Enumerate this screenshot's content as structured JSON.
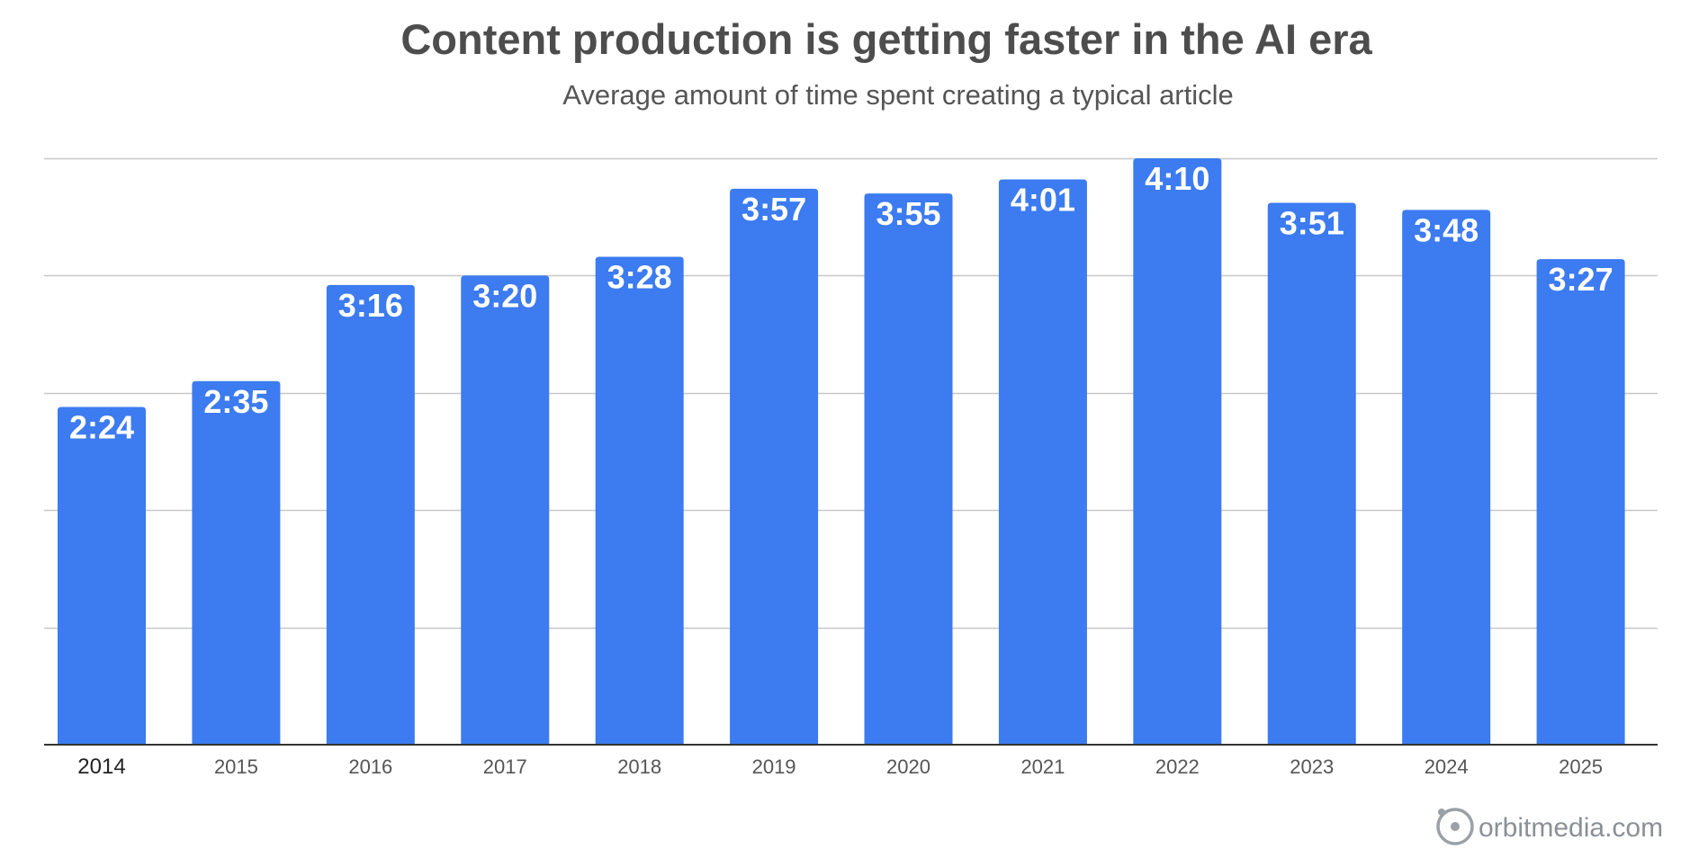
{
  "chart_data": {
    "type": "bar",
    "title": "Content production is getting faster in the AI era",
    "subtitle": "Average amount of time spent creating a typical article",
    "xlabel": "",
    "ylabel": "",
    "categories": [
      "2014",
      "2015",
      "2016",
      "2017",
      "2018",
      "2019",
      "2020",
      "2021",
      "2022",
      "2023",
      "2024",
      "2025"
    ],
    "values_minutes": [
      144,
      155,
      196,
      200,
      208,
      237,
      235,
      241,
      250,
      231,
      228,
      207
    ],
    "value_labels": [
      "2:24",
      "2:35",
      "3:16",
      "3:20",
      "3:28",
      "3:57",
      "3:55",
      "4:01",
      "4:10",
      "3:51",
      "3:48",
      "3:27"
    ],
    "ylim_minutes": [
      0,
      250
    ],
    "grid": true,
    "legend": "none"
  },
  "colors": {
    "bar": "#3c7bf0",
    "grid": "#c7c7c7",
    "axis": "#333333"
  },
  "footer": {
    "brand_icon": "orbit-logo-icon",
    "brand_text": "orbitmedia.com"
  }
}
